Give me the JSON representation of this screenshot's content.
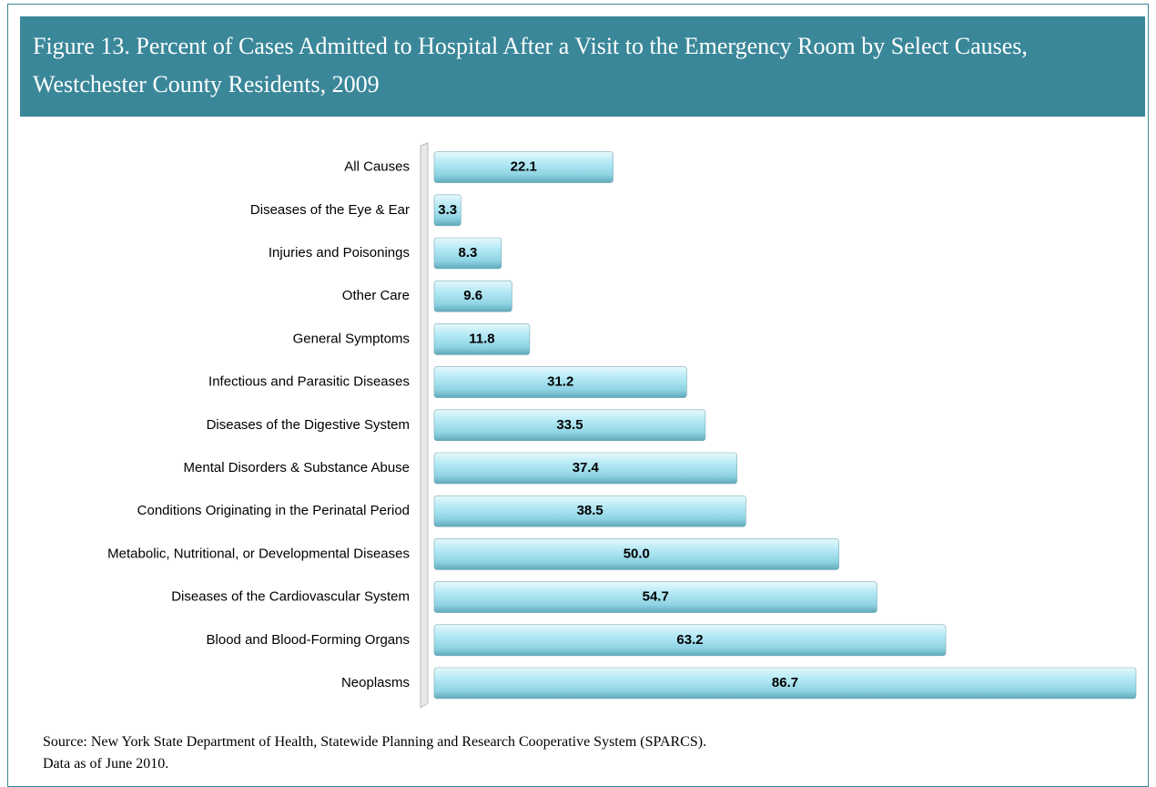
{
  "chart_data": {
    "type": "bar",
    "orientation": "horizontal",
    "title": "Figure 13.  Percent of Cases Admitted to Hospital After a Visit to the Emergency Room by Select Causes, Westchester County Residents, 2009",
    "categories": [
      "All Causes",
      "Diseases of the Eye & Ear",
      "Injuries and Poisonings",
      "Other Care",
      "General Symptoms",
      "Infectious and Parasitic Diseases",
      "Diseases of the Digestive System",
      "Mental Disorders & Substance Abuse",
      "Conditions Originating in the Perinatal Period",
      "Metabolic, Nutritional, or Developmental Diseases",
      "Diseases of the Cardiovascular System",
      "Blood and Blood-Forming  Organs",
      "Neoplasms"
    ],
    "values": [
      22.1,
      3.3,
      8.3,
      9.6,
      11.8,
      31.2,
      33.5,
      37.4,
      38.5,
      50,
      54.7,
      63.2,
      86.7
    ],
    "value_labels": [
      "22.1",
      "3.3",
      "8.3",
      "9.6",
      "11.8",
      "31.2",
      "33.5",
      "37.4",
      "38.5",
      "50.0",
      "54.7",
      "63.2",
      "86.7"
    ],
    "color": "#9ee0ef",
    "source": "Source: New York State Department of Health, Statewide Planning and Research Cooperative System (SPARCS).",
    "note": "Data as of June 2010."
  }
}
